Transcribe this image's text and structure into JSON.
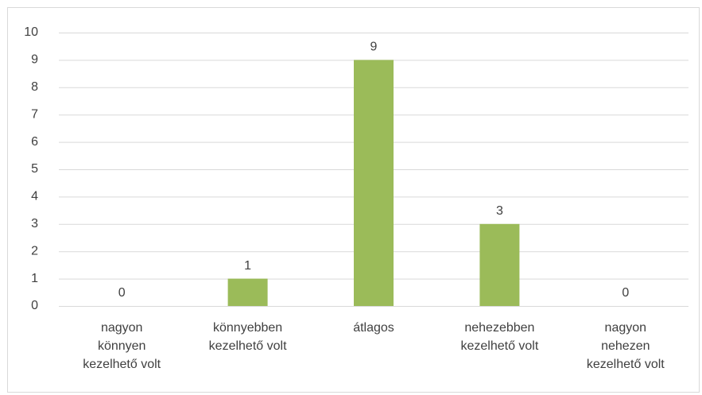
{
  "chart_data": {
    "type": "bar",
    "categories": [
      "nagyon könnyen kezelhető volt",
      "könnyebben kezelhető volt",
      "átlagos",
      "nehezebben kezelhető volt",
      "nagyon nehezen kezelhető volt"
    ],
    "values": [
      0,
      1,
      9,
      3,
      0
    ],
    "color": "#9bbb59",
    "ylim": [
      0,
      10
    ],
    "yticks": [
      0,
      1,
      2,
      3,
      4,
      5,
      6,
      7,
      8,
      9,
      10
    ],
    "grid": true
  }
}
